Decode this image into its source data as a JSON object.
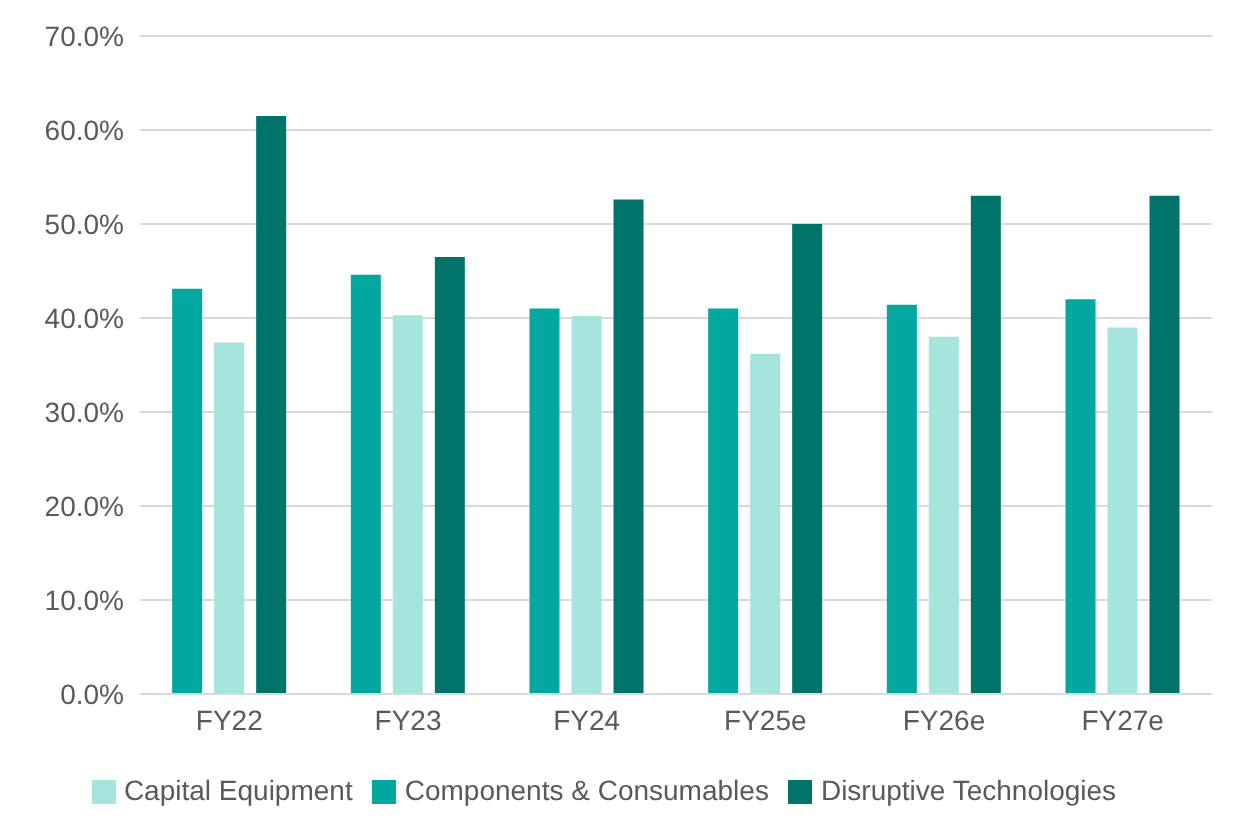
{
  "chart_data": {
    "type": "bar",
    "categories": [
      "FY22",
      "FY23",
      "FY24",
      "FY25e",
      "FY26e",
      "FY27e"
    ],
    "series": [
      {
        "name": "Components & Consumables",
        "color": "#00a8a0",
        "values": [
          43.1,
          44.6,
          41.0,
          41.0,
          41.4,
          42.0
        ]
      },
      {
        "name": "Capital Equipment",
        "color": "#a6e5dd",
        "values": [
          37.4,
          40.3,
          40.2,
          36.2,
          38.0,
          39.0
        ]
      },
      {
        "name": "Disruptive Technologies",
        "color": "#00736b",
        "values": [
          61.5,
          46.5,
          52.6,
          50.0,
          53.0,
          53.0
        ]
      }
    ],
    "ylim": [
      0,
      70
    ],
    "yticks": [
      {
        "value": 0,
        "label": "0.0%"
      },
      {
        "value": 10,
        "label": "10.0%"
      },
      {
        "value": 20,
        "label": "20.0%"
      },
      {
        "value": 30,
        "label": "30.0%"
      },
      {
        "value": 40,
        "label": "40.0%"
      },
      {
        "value": 50,
        "label": "50.0%"
      },
      {
        "value": 60,
        "label": "60.0%"
      },
      {
        "value": 70,
        "label": "70.0%"
      }
    ],
    "grid": "y",
    "legend": "bottom"
  }
}
